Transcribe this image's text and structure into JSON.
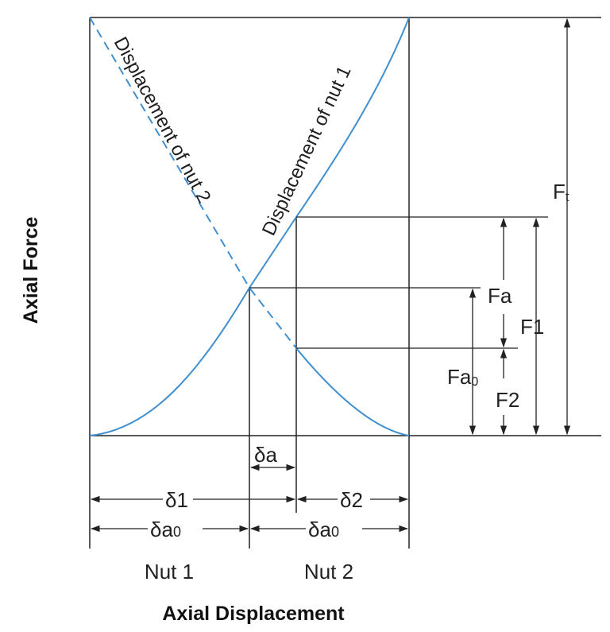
{
  "diagram": {
    "curve_nut1_label": "Displacement of nut 1",
    "curve_nut2_label": "Displacement of nut 2",
    "y_axis_label": "Axial Force",
    "x_axis_label": "Axial Displacement",
    "force_labels": {
      "ft": "F",
      "ft_sub": "t",
      "fa": "Fa",
      "f1": "F1",
      "fa0": "Fa",
      "fa0_sub": "0",
      "f2": "F2"
    },
    "displacement_labels": {
      "delta_a": "δa",
      "delta1": "δ1",
      "delta2": "δ2",
      "delta_a0_left": "δa",
      "delta_a0_left_sub": "0",
      "delta_a0_right": "δa",
      "delta_a0_right_sub": "0"
    },
    "nut_labels": {
      "nut1": "Nut 1",
      "nut2": "Nut 2"
    },
    "colors": {
      "curve": "#3f8fd0",
      "lines": "#222222"
    }
  }
}
